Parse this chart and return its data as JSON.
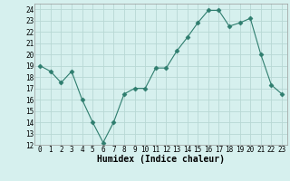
{
  "x": [
    0,
    1,
    2,
    3,
    4,
    5,
    6,
    7,
    8,
    9,
    10,
    11,
    12,
    13,
    14,
    15,
    16,
    17,
    18,
    19,
    20,
    21,
    22,
    23
  ],
  "y": [
    19,
    18.5,
    17.5,
    18.5,
    16,
    14,
    12.2,
    14,
    16.5,
    17,
    17,
    18.8,
    18.8,
    20.3,
    21.5,
    22.8,
    23.9,
    23.9,
    22.5,
    22.8,
    23.2,
    20,
    17.3,
    16.5
  ],
  "line_color": "#2e7d6e",
  "marker": "D",
  "marker_size": 2.5,
  "bg_color": "#d6f0ee",
  "grid_color": "#b8d8d4",
  "xlabel": "Humidex (Indice chaleur)",
  "xlim": [
    -0.5,
    23.5
  ],
  "ylim": [
    12,
    24.5
  ],
  "yticks": [
    12,
    13,
    14,
    15,
    16,
    17,
    18,
    19,
    20,
    21,
    22,
    23,
    24
  ],
  "xticks": [
    0,
    1,
    2,
    3,
    4,
    5,
    6,
    7,
    8,
    9,
    10,
    11,
    12,
    13,
    14,
    15,
    16,
    17,
    18,
    19,
    20,
    21,
    22,
    23
  ],
  "tick_fontsize": 5.5,
  "xlabel_fontsize": 7
}
